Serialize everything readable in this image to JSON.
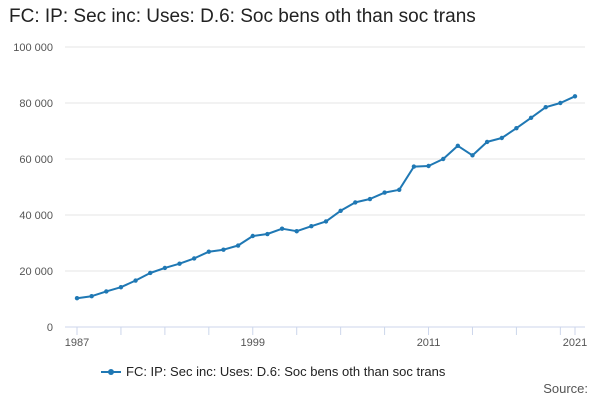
{
  "title": "FC: IP: Sec inc: Uses: D.6: Soc bens oth than soc trans",
  "source_label": "Source:",
  "colors": {
    "series": "#1f78b4",
    "grid": "#e6e6e6",
    "axis": "#ccd6eb",
    "tick_text": "#555555"
  },
  "chart_data": {
    "type": "line",
    "title": "FC: IP: Sec inc: Uses: D.6: Soc bens oth than soc trans",
    "xlabel": "",
    "ylabel": "",
    "xlim": [
      1987,
      2021
    ],
    "ylim": [
      0,
      100000
    ],
    "x_ticks": [
      1987,
      1999,
      2011,
      2021
    ],
    "y_ticks": [
      0,
      20000,
      40000,
      60000,
      80000,
      100000
    ],
    "y_tick_labels": [
      "0",
      "20 000",
      "40 000",
      "60 000",
      "80 000",
      "100 000"
    ],
    "grid": true,
    "legend_position": "bottom",
    "series": [
      {
        "name": "FC: IP: Sec inc: Uses: D.6: Soc bens oth than soc trans",
        "x": [
          1987,
          1988,
          1989,
          1990,
          1991,
          1992,
          1993,
          1994,
          1995,
          1996,
          1997,
          1998,
          1999,
          2000,
          2001,
          2002,
          2003,
          2004,
          2005,
          2006,
          2007,
          2008,
          2009,
          2010,
          2011,
          2012,
          2013,
          2014,
          2015,
          2016,
          2017,
          2018,
          2019,
          2020,
          2021
        ],
        "values": [
          10300,
          11000,
          12700,
          14200,
          16600,
          19300,
          21100,
          22600,
          24500,
          26900,
          27600,
          29100,
          32500,
          33200,
          35100,
          34200,
          36000,
          37700,
          41500,
          44500,
          45700,
          48000,
          49000,
          57300,
          57500,
          60000,
          64700,
          61300,
          66100,
          67500,
          71000,
          74700,
          78500,
          80000,
          82400
        ]
      }
    ]
  }
}
